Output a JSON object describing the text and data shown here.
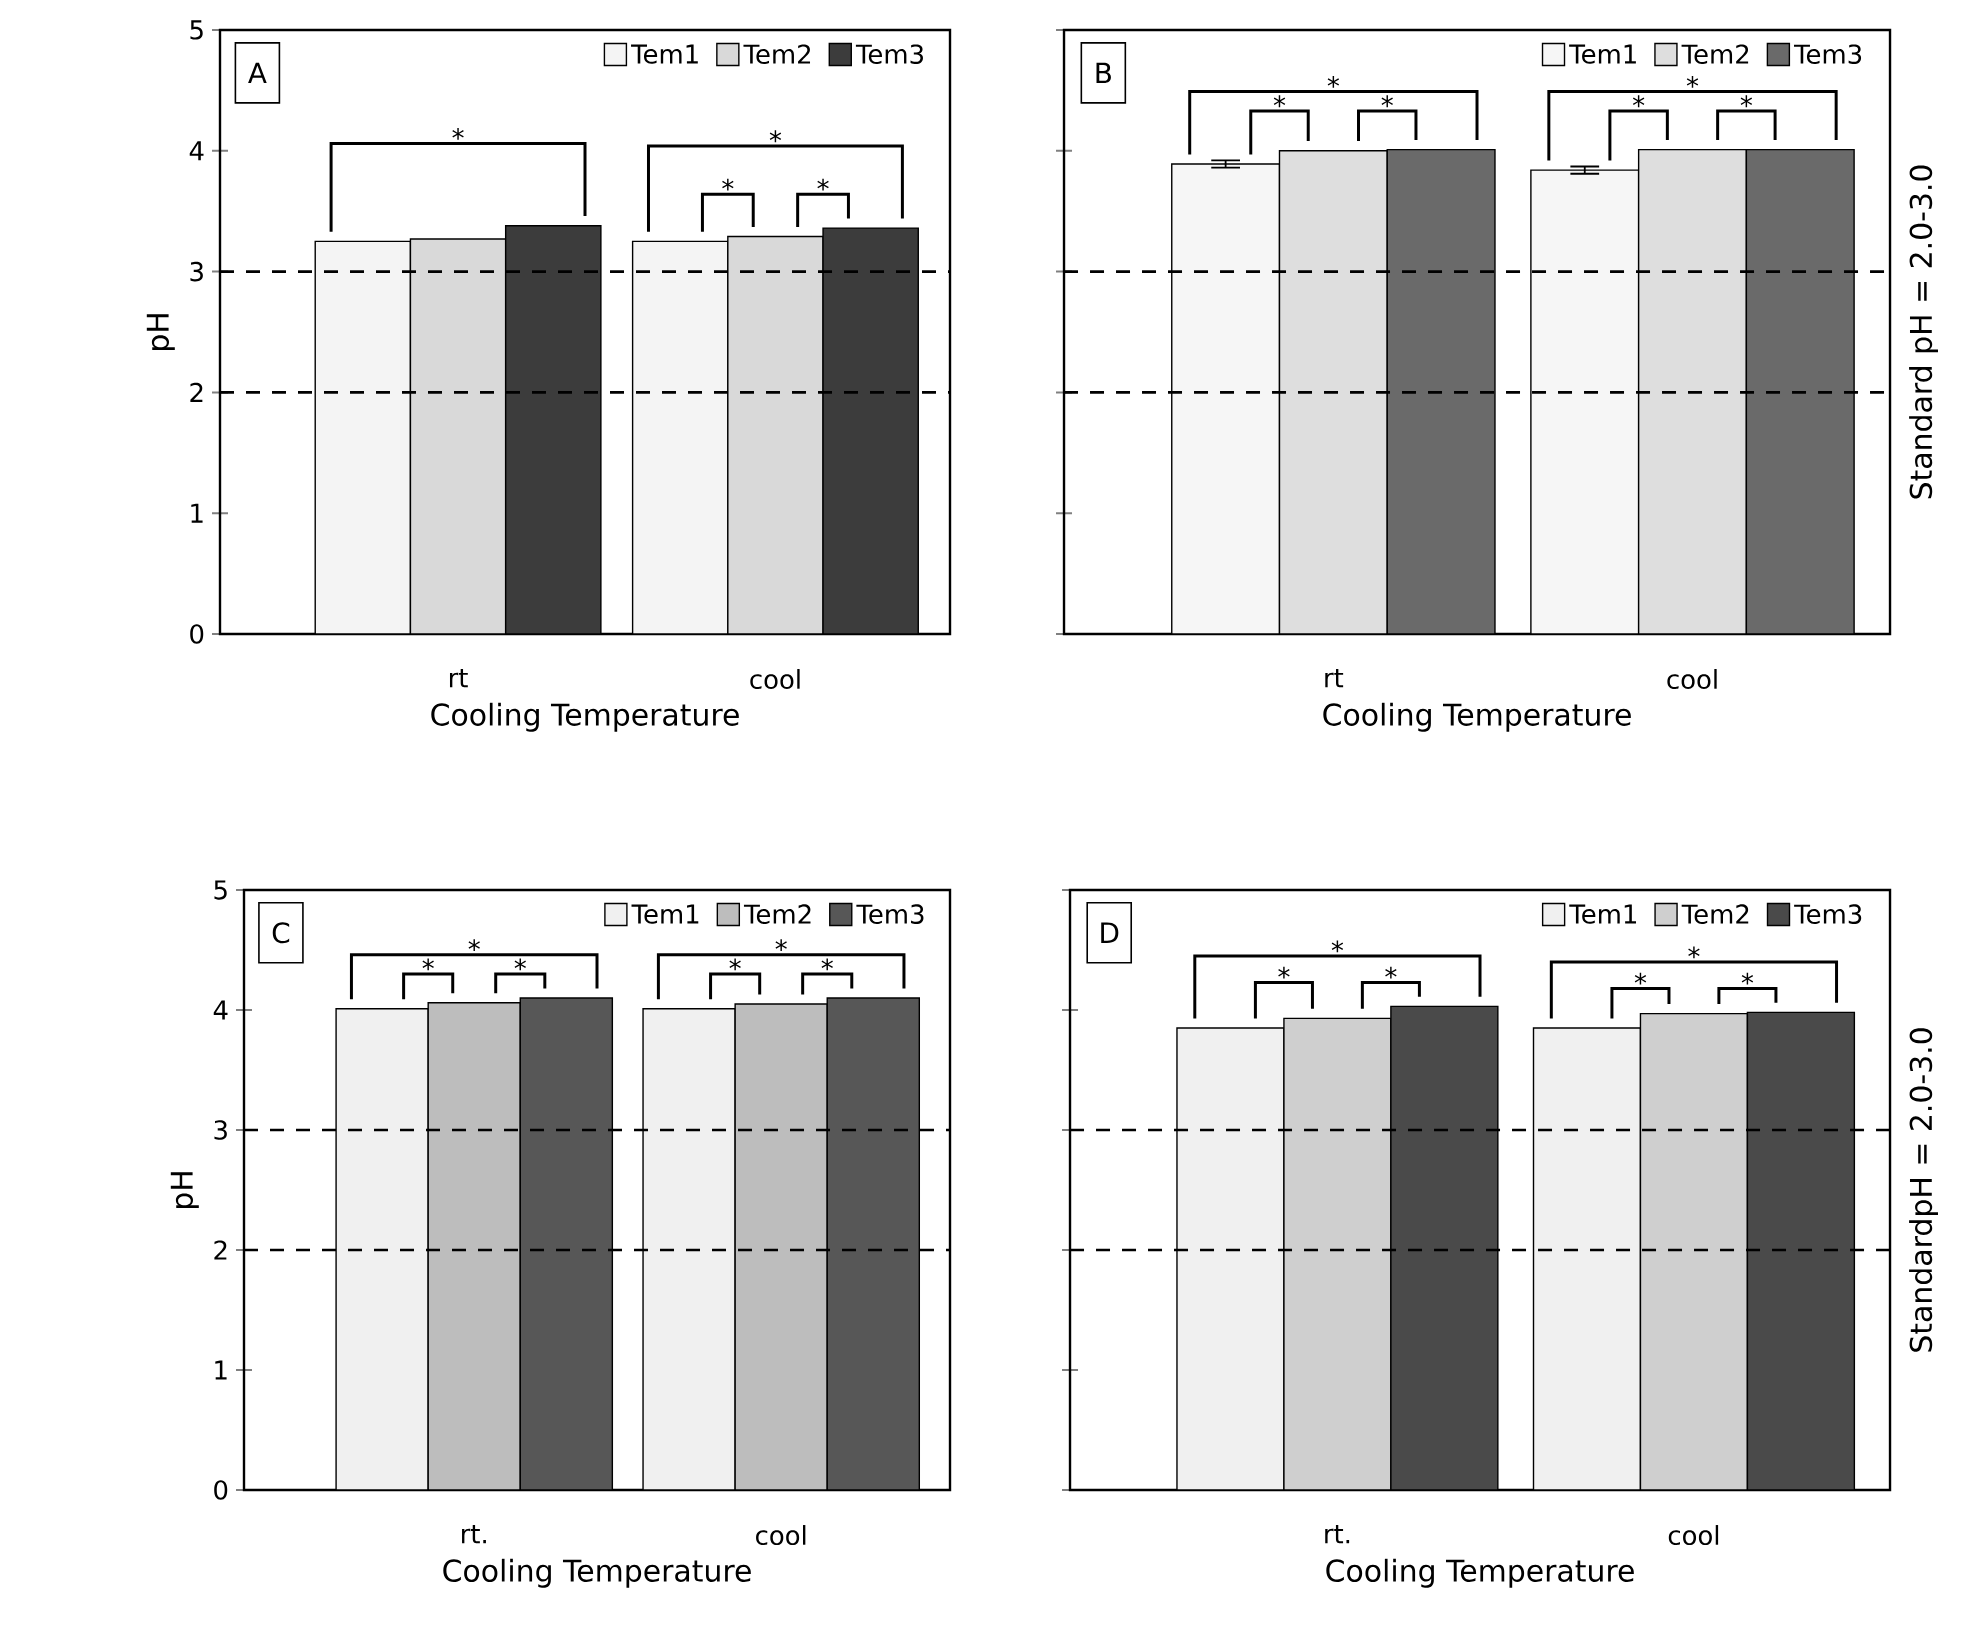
{
  "chart_data": [
    {
      "type": "bar",
      "title": "A",
      "xlabel": "Cooling Temperature",
      "ylabel": "pH",
      "categories": [
        "rt",
        "cool"
      ],
      "series": [
        {
          "name": "Tem1",
          "color": "#f4f4f4",
          "values": [
            3.25,
            3.25
          ]
        },
        {
          "name": "Tem2",
          "color": "#d9d9d9",
          "values": [
            3.27,
            3.29
          ]
        },
        {
          "name": "Tem3",
          "color": "#3c3c3c",
          "values": [
            3.38,
            3.36
          ]
        }
      ],
      "ylim": [
        0,
        5
      ],
      "yticks": [
        0,
        1,
        2,
        3,
        4,
        5
      ],
      "legend": "top right",
      "ref_lines": [
        {
          "axis": "y",
          "value": 3,
          "line_style": "dashed"
        },
        {
          "axis": "y",
          "value": 2,
          "line_style": "dashed"
        }
      ],
      "annotations": [
        "*",
        "*",
        "*",
        "*"
      ]
    },
    {
      "type": "bar",
      "title": "B",
      "xlabel": "Cooling Temperature",
      "categories": [
        "rt",
        "cool"
      ],
      "series": [
        {
          "name": "Tem1",
          "color": "#f6f6f6",
          "values": [
            3.89,
            3.84
          ],
          "errors": [
            0.03,
            0.03
          ]
        },
        {
          "name": "Tem2",
          "color": "#dedede",
          "values": [
            4.0,
            4.01
          ]
        },
        {
          "name": "Tem3",
          "color": "#6a6a6a",
          "values": [
            4.01,
            4.01
          ]
        }
      ],
      "ylim": [
        0,
        5
      ],
      "yticks": [
        0,
        1,
        2,
        3,
        4,
        5
      ],
      "tick_labels": "x",
      "legend": "top right",
      "ref_lines": [
        {
          "axis": "y",
          "value": 3,
          "line_style": "dashed"
        },
        {
          "axis": "y",
          "value": 2,
          "line_style": "dashed"
        }
      ],
      "annotations": [
        "*",
        "*",
        "*",
        "*",
        "*",
        "*",
        "Standard pH = 2.0-3.0"
      ]
    },
    {
      "type": "bar",
      "title": "C",
      "xlabel": "Cooling Temperature",
      "ylabel": "pH",
      "categories": [
        "rt.",
        "cool"
      ],
      "series": [
        {
          "name": "Tem1",
          "color": "#f0f0f0",
          "values": [
            4.01,
            4.01
          ]
        },
        {
          "name": "Tem2",
          "color": "#bdbdbd",
          "values": [
            4.06,
            4.05
          ]
        },
        {
          "name": "Tem3",
          "color": "#575757",
          "values": [
            4.1,
            4.1
          ]
        }
      ],
      "ylim": [
        0,
        5
      ],
      "yticks": [
        0,
        1,
        2,
        3,
        4,
        5
      ],
      "legend": "top right",
      "ref_lines": [
        {
          "axis": "y",
          "value": 3,
          "line_style": "dashed"
        },
        {
          "axis": "y",
          "value": 2,
          "line_style": "dashed"
        }
      ],
      "annotations": [
        "*",
        "*",
        "*",
        "*",
        "*",
        "*"
      ]
    },
    {
      "type": "bar",
      "title": "D",
      "xlabel": "Cooling Temperature",
      "categories": [
        "rt.",
        "cool"
      ],
      "series": [
        {
          "name": "Tem1",
          "color": "#f0f0f0",
          "values": [
            3.85,
            3.85
          ]
        },
        {
          "name": "Tem2",
          "color": "#cfcfcf",
          "values": [
            3.93,
            3.97
          ]
        },
        {
          "name": "Tem3",
          "color": "#4a4a4a",
          "values": [
            4.03,
            3.98
          ]
        }
      ],
      "ylim": [
        0,
        5
      ],
      "yticks": [
        0,
        1,
        2,
        3,
        4,
        5
      ],
      "tick_labels": "x",
      "legend": "top right",
      "ref_lines": [
        {
          "axis": "y",
          "value": 3,
          "line_style": "dashed"
        },
        {
          "axis": "y",
          "value": 2,
          "line_style": "dashed"
        }
      ],
      "annotations": [
        "*",
        "*",
        "*",
        "*",
        "*",
        "*",
        "StandardpH = 2.0-3.0"
      ]
    }
  ]
}
